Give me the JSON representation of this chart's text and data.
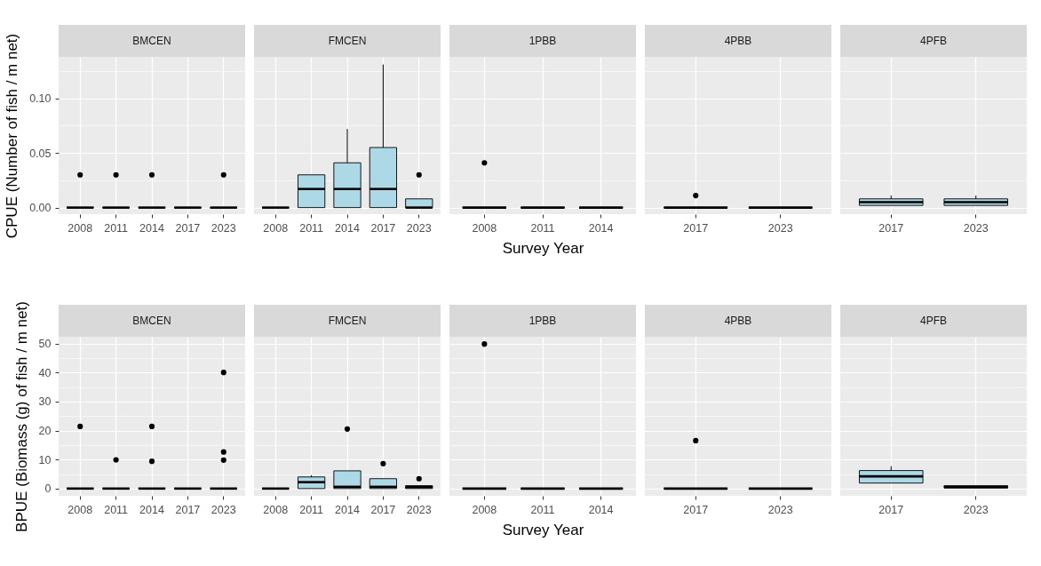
{
  "chart_data": [
    {
      "type": "box",
      "title": "BMCEN",
      "ylabel": "CPUE (Number of fish / m net)",
      "categories": [
        "2008",
        "2011",
        "2014",
        "2017",
        "2023"
      ],
      "series": [
        {
          "color": "#000000",
          "boxes": [
            {
              "low": 0,
              "q1": 0,
              "median": 0,
              "q3": 0,
              "high": 0,
              "outliers": [
                0.03
              ]
            },
            {
              "low": 0,
              "q1": 0,
              "median": 0,
              "q3": 0,
              "high": 0,
              "outliers": [
                0.03
              ]
            },
            {
              "low": 0,
              "q1": 0,
              "median": 0,
              "q3": 0,
              "high": 0,
              "outliers": [
                0.03
              ]
            },
            {
              "low": 0,
              "q1": 0,
              "median": 0,
              "q3": 0,
              "high": 0
            },
            {
              "low": 0,
              "q1": 0,
              "median": 0,
              "q3": 0,
              "high": 0,
              "outliers": [
                0.03
              ]
            }
          ]
        }
      ],
      "ylim": [
        -0.006,
        0.138
      ],
      "yticks": [
        {
          "value": 0,
          "label": "0.00"
        },
        {
          "value": 0.05,
          "label": "0.05"
        },
        {
          "value": 0.1,
          "label": "0.10"
        }
      ],
      "grid": true
    },
    {
      "type": "box",
      "title": "FMCEN",
      "categories": [
        "2008",
        "2011",
        "2014",
        "2017",
        "2023"
      ],
      "series": [
        {
          "colors": [
            "#000000",
            "#add8e6",
            "#add8e6",
            "#add8e6",
            "#add8e6"
          ],
          "boxes": [
            {
              "low": 0,
              "q1": 0,
              "median": 0,
              "q3": 0,
              "high": 0
            },
            {
              "low": 0,
              "q1": 0,
              "median": 0.017,
              "q3": 0.03,
              "high": 0.03
            },
            {
              "low": 0,
              "q1": 0,
              "median": 0.017,
              "q3": 0.041,
              "high": 0.072
            },
            {
              "low": 0,
              "q1": 0,
              "median": 0.017,
              "q3": 0.055,
              "high": 0.131
            },
            {
              "low": 0,
              "q1": 0,
              "median": 0,
              "q3": 0.008,
              "high": 0.008,
              "outliers": [
                0.03
              ]
            }
          ]
        }
      ],
      "ylim": [
        -0.006,
        0.138
      ],
      "yticks": [
        0,
        0.05,
        0.1
      ],
      "grid": true,
      "tick_labels": "x"
    },
    {
      "type": "box",
      "title": "1PBB",
      "xlabel": "Survey Year",
      "categories": [
        "2008",
        "2011",
        "2014"
      ],
      "series": [
        {
          "color": "#000000",
          "boxes": [
            {
              "low": 0,
              "q1": 0,
              "median": 0,
              "q3": 0,
              "high": 0,
              "outliers": [
                0.041
              ]
            },
            {
              "low": 0,
              "q1": 0,
              "median": 0,
              "q3": 0,
              "high": 0
            },
            {
              "low": 0,
              "q1": 0,
              "median": 0,
              "q3": 0,
              "high": 0
            }
          ]
        }
      ],
      "ylim": [
        -0.006,
        0.138
      ],
      "yticks": [
        0,
        0.05,
        0.1
      ],
      "grid": true,
      "tick_labels": "x"
    },
    {
      "type": "box",
      "title": "4PBB",
      "categories": [
        "2017",
        "2023"
      ],
      "series": [
        {
          "color": "#000000",
          "boxes": [
            {
              "low": 0,
              "q1": 0,
              "median": 0,
              "q3": 0,
              "high": 0,
              "outliers": [
                0.011
              ]
            },
            {
              "low": 0,
              "q1": 0,
              "median": 0,
              "q3": 0,
              "high": 0
            }
          ]
        }
      ],
      "ylim": [
        -0.006,
        0.138
      ],
      "yticks": [
        0,
        0.05,
        0.1
      ],
      "grid": true,
      "tick_labels": "x"
    },
    {
      "type": "box",
      "title": "4PFB",
      "categories": [
        "2017",
        "2023"
      ],
      "series": [
        {
          "color": "#add8e6",
          "boxes": [
            {
              "low": 0.002,
              "q1": 0.002,
              "median": 0.005,
              "q3": 0.008,
              "high": 0.011
            },
            {
              "low": 0.002,
              "q1": 0.002,
              "median": 0.005,
              "q3": 0.008,
              "high": 0.011
            }
          ]
        }
      ],
      "ylim": [
        -0.006,
        0.138
      ],
      "yticks": [
        0,
        0.05,
        0.1
      ],
      "grid": true,
      "tick_labels": "x"
    },
    {
      "type": "box",
      "title": "BMCEN",
      "ylabel": "BPUE (Biomass (g) of fish / m net)",
      "categories": [
        "2008",
        "2011",
        "2014",
        "2017",
        "2023"
      ],
      "series": [
        {
          "color": "#000000",
          "boxes": [
            {
              "low": 0,
              "q1": 0,
              "median": 0,
              "q3": 0,
              "high": 0,
              "outliers": [
                21.4
              ]
            },
            {
              "low": 0,
              "q1": 0,
              "median": 0,
              "q3": 0,
              "high": 0,
              "outliers": [
                9.9
              ]
            },
            {
              "low": 0,
              "q1": 0,
              "median": 0,
              "q3": 0,
              "high": 0,
              "outliers": [
                21.4,
                9.4
              ]
            },
            {
              "low": 0,
              "q1": 0,
              "median": 0,
              "q3": 0,
              "high": 0
            },
            {
              "low": 0,
              "q1": 0,
              "median": 0,
              "q3": 0,
              "high": 0,
              "outliers": [
                40,
                12.6,
                9.8
              ]
            }
          ]
        }
      ],
      "ylim": [
        -2.5,
        52.3
      ],
      "yticks": [
        0,
        10,
        20,
        30,
        40,
        50
      ],
      "grid": true
    },
    {
      "type": "box",
      "title": "FMCEN",
      "categories": [
        "2008",
        "2011",
        "2014",
        "2017",
        "2023"
      ],
      "series": [
        {
          "colors": [
            "#000000",
            "#add8e6",
            "#add8e6",
            "#add8e6",
            "#add8e6"
          ],
          "boxes": [
            {
              "low": 0,
              "q1": 0,
              "median": 0,
              "q3": 0,
              "high": 0
            },
            {
              "low": 0,
              "q1": 0,
              "median": 2.2,
              "q3": 4.0,
              "high": 4.6
            },
            {
              "low": 0,
              "q1": 0,
              "median": 0.6,
              "q3": 6.1,
              "high": 6.1,
              "outliers": [
                20.5
              ]
            },
            {
              "low": 0,
              "q1": 0,
              "median": 0.6,
              "q3": 3.4,
              "high": 3.4,
              "outliers": [
                8.6
              ]
            },
            {
              "low": 0,
              "q1": 0,
              "median": 0.5,
              "q3": 1.0,
              "high": 1.0,
              "outliers": [
                3.4
              ]
            }
          ]
        }
      ],
      "ylim": [
        -2.5,
        52.3
      ],
      "yticks": [
        0,
        10,
        20,
        30,
        40,
        50
      ],
      "grid": true,
      "tick_labels": "x"
    },
    {
      "type": "box",
      "title": "1PBB",
      "xlabel": "Survey Year",
      "categories": [
        "2008",
        "2011",
        "2014"
      ],
      "series": [
        {
          "color": "#000000",
          "boxes": [
            {
              "low": 0,
              "q1": 0,
              "median": 0,
              "q3": 0,
              "high": 0,
              "outliers": [
                49.8
              ]
            },
            {
              "low": 0,
              "q1": 0,
              "median": 0,
              "q3": 0,
              "high": 0
            },
            {
              "low": 0,
              "q1": 0,
              "median": 0,
              "q3": 0,
              "high": 0
            }
          ]
        }
      ],
      "ylim": [
        -2.5,
        52.3
      ],
      "yticks": [
        0,
        10,
        20,
        30,
        40,
        50
      ],
      "grid": true,
      "tick_labels": "x"
    },
    {
      "type": "box",
      "title": "4PBB",
      "categories": [
        "2017",
        "2023"
      ],
      "series": [
        {
          "color": "#000000",
          "boxes": [
            {
              "low": 0,
              "q1": 0,
              "median": 0,
              "q3": 0,
              "high": 0,
              "outliers": [
                16.5
              ]
            },
            {
              "low": 0,
              "q1": 0,
              "median": 0,
              "q3": 0,
              "high": 0
            }
          ]
        }
      ],
      "ylim": [
        -2.5,
        52.3
      ],
      "yticks": [
        0,
        10,
        20,
        30,
        40,
        50
      ],
      "grid": true,
      "tick_labels": "x"
    },
    {
      "type": "box",
      "title": "4PFB",
      "categories": [
        "2017",
        "2023"
      ],
      "series": [
        {
          "color": "#add8e6",
          "boxes": [
            {
              "low": 1.9,
              "q1": 1.9,
              "median": 4.2,
              "q3": 6.2,
              "high": 7.7
            },
            {
              "low": 0.2,
              "q1": 0.2,
              "median": 0.5,
              "q3": 1.0,
              "high": 1.0
            }
          ]
        }
      ],
      "ylim": [
        -2.5,
        52.3
      ],
      "yticks": [
        0,
        10,
        20,
        30,
        40,
        50
      ],
      "grid": true,
      "tick_labels": "x"
    }
  ]
}
